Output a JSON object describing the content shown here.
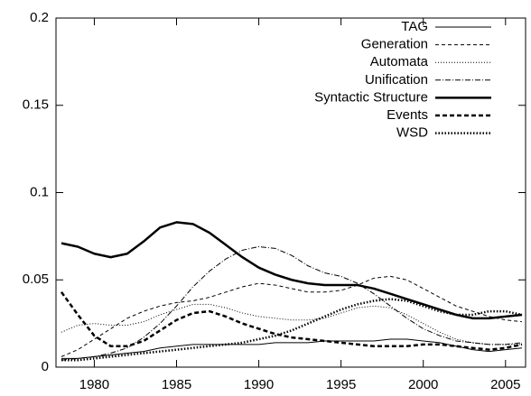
{
  "chart_data": {
    "type": "line",
    "x": [
      1978,
      1979,
      1980,
      1981,
      1982,
      1983,
      1984,
      1985,
      1986,
      1987,
      1988,
      1989,
      1990,
      1991,
      1992,
      1993,
      1994,
      1995,
      1996,
      1997,
      1998,
      1999,
      2000,
      2001,
      2002,
      2003,
      2004,
      2005,
      2006
    ],
    "xlim": [
      1978,
      2006
    ],
    "xticks": [
      1980,
      1985,
      1990,
      1995,
      2000,
      2005
    ],
    "ylim": [
      0,
      0.2
    ],
    "yticks": [
      0,
      0.05,
      0.1,
      0.15,
      0.2
    ],
    "legend": "upper right",
    "series": [
      {
        "name": "TAG",
        "color": "#000000",
        "width": 1,
        "dash": "none",
        "values": [
          0.005,
          0.005,
          0.006,
          0.007,
          0.008,
          0.009,
          0.011,
          0.012,
          0.013,
          0.013,
          0.013,
          0.013,
          0.013,
          0.014,
          0.014,
          0.014,
          0.015,
          0.015,
          0.015,
          0.015,
          0.016,
          0.016,
          0.015,
          0.014,
          0.012,
          0.01,
          0.009,
          0.01,
          0.011
        ]
      },
      {
        "name": "Generation",
        "color": "#000000",
        "width": 1,
        "dash": "4 3",
        "values": [
          0.006,
          0.01,
          0.016,
          0.022,
          0.028,
          0.032,
          0.035,
          0.037,
          0.038,
          0.04,
          0.043,
          0.046,
          0.048,
          0.047,
          0.045,
          0.043,
          0.043,
          0.044,
          0.047,
          0.051,
          0.052,
          0.05,
          0.045,
          0.04,
          0.035,
          0.032,
          0.029,
          0.027,
          0.026
        ]
      },
      {
        "name": "Automata",
        "color": "#000000",
        "width": 1,
        "dash": "1 2",
        "values": [
          0.02,
          0.024,
          0.025,
          0.024,
          0.024,
          0.026,
          0.03,
          0.033,
          0.036,
          0.036,
          0.034,
          0.031,
          0.029,
          0.028,
          0.027,
          0.027,
          0.028,
          0.031,
          0.034,
          0.035,
          0.034,
          0.03,
          0.025,
          0.02,
          0.016,
          0.014,
          0.013,
          0.013,
          0.013
        ]
      },
      {
        "name": "Unification",
        "color": "#000000",
        "width": 1,
        "dash": "6 2 1 2",
        "values": [
          0.004,
          0.005,
          0.006,
          0.008,
          0.011,
          0.017,
          0.025,
          0.035,
          0.046,
          0.055,
          0.062,
          0.067,
          0.069,
          0.068,
          0.064,
          0.058,
          0.054,
          0.052,
          0.048,
          0.042,
          0.035,
          0.028,
          0.022,
          0.018,
          0.015,
          0.014,
          0.013,
          0.013,
          0.014
        ]
      },
      {
        "name": "Syntactic Structure",
        "color": "#000000",
        "width": 2.5,
        "dash": "none",
        "values": [
          0.071,
          0.069,
          0.065,
          0.063,
          0.065,
          0.072,
          0.08,
          0.083,
          0.082,
          0.077,
          0.07,
          0.063,
          0.057,
          0.053,
          0.05,
          0.048,
          0.047,
          0.047,
          0.047,
          0.045,
          0.042,
          0.039,
          0.036,
          0.033,
          0.03,
          0.028,
          0.028,
          0.029,
          0.03
        ]
      },
      {
        "name": "Events",
        "color": "#000000",
        "width": 2.5,
        "dash": "5 3",
        "values": [
          0.043,
          0.03,
          0.018,
          0.012,
          0.012,
          0.015,
          0.021,
          0.027,
          0.031,
          0.032,
          0.029,
          0.025,
          0.022,
          0.019,
          0.017,
          0.016,
          0.015,
          0.014,
          0.013,
          0.012,
          0.012,
          0.012,
          0.013,
          0.013,
          0.012,
          0.011,
          0.01,
          0.011,
          0.013
        ]
      },
      {
        "name": "WSD",
        "color": "#000000",
        "width": 2.5,
        "dash": "1.5 2",
        "values": [
          0.004,
          0.004,
          0.005,
          0.006,
          0.007,
          0.008,
          0.009,
          0.01,
          0.011,
          0.012,
          0.013,
          0.014,
          0.016,
          0.018,
          0.021,
          0.025,
          0.029,
          0.033,
          0.036,
          0.038,
          0.039,
          0.038,
          0.035,
          0.032,
          0.03,
          0.03,
          0.032,
          0.032,
          0.03
        ]
      }
    ]
  }
}
